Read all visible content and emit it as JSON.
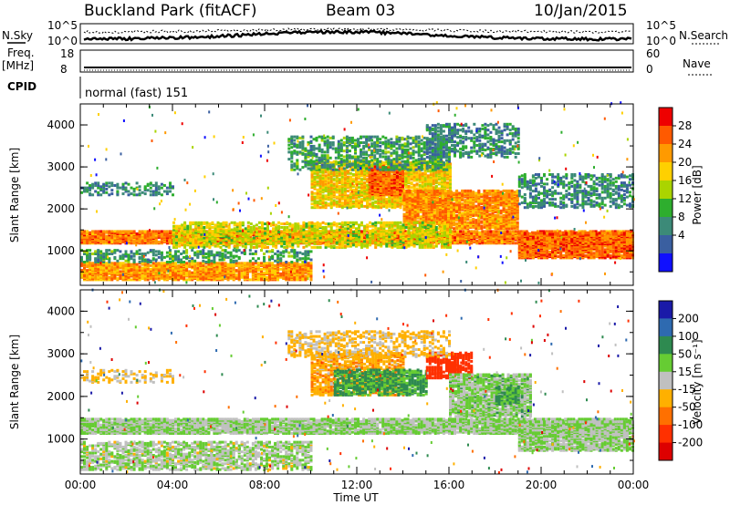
{
  "header": {
    "title": "Buckland Park (fitACF)",
    "beam": "Beam 03",
    "date": "10/Jan/2015"
  },
  "status_panels": {
    "nsky_label": "N.Sky",
    "nsky_ticks": [
      "10^5",
      "10^0"
    ],
    "nsearch_label": "N.Search",
    "nsearch_ticks": [
      "10^5",
      "10^0"
    ],
    "freq_label": "Freq.",
    "freq_unit": "[MHz]",
    "freq_ticks": [
      "18",
      "8"
    ],
    "nave_label": "Nave",
    "nave_ticks": [
      "60",
      "0"
    ],
    "cpid_label": "CPID",
    "cpid_text": "normal (fast) 151"
  },
  "chart_data": [
    {
      "type": "heatmap",
      "name": "power",
      "xlabel": "",
      "ylabel": "Slant Range [km]",
      "x_ticks": [
        "00:00",
        "04:00",
        "08:00",
        "12:00",
        "16:00",
        "20:00",
        "00:00"
      ],
      "xlim_hours": [
        0,
        24
      ],
      "y_ticks": [
        "1000",
        "2000",
        "3000",
        "4000"
      ],
      "ylim": [
        180,
        4500
      ],
      "colorbar_label": "Power [dB]",
      "colorbar_ticks": [
        "28",
        "24",
        "20",
        "16",
        "12",
        "8",
        "4"
      ],
      "colorbar_colors": [
        "#ee0000",
        "#ff5a00",
        "#ff9a00",
        "#ffd000",
        "#aad400",
        "#2eae2e",
        "#3c8a78",
        "#3a5fa0",
        "#1010ff"
      ],
      "bands": [
        {
          "t0": 0,
          "t1": 24,
          "r0": 1150,
          "r1": 1450,
          "power": 26,
          "density": 0.9
        },
        {
          "t0": 0,
          "t1": 10,
          "r0": 280,
          "r1": 700,
          "power": 24,
          "density": 0.8
        },
        {
          "t0": 0,
          "t1": 10,
          "r0": 700,
          "r1": 1000,
          "power": 10,
          "density": 0.35
        },
        {
          "t0": 0,
          "t1": 4,
          "r0": 2300,
          "r1": 2600,
          "power": 8,
          "density": 0.35
        },
        {
          "t0": 10,
          "t1": 16,
          "r0": 2000,
          "r1": 3100,
          "power": 20,
          "density": 0.7
        },
        {
          "t0": 12.5,
          "t1": 14,
          "r0": 2300,
          "r1": 3000,
          "power": 27,
          "density": 0.8
        },
        {
          "t0": 14,
          "t1": 19,
          "r0": 1500,
          "r1": 2400,
          "power": 25,
          "density": 0.8
        },
        {
          "t0": 9,
          "t1": 16,
          "r0": 2900,
          "r1": 3700,
          "power": 10,
          "density": 0.4
        },
        {
          "t0": 15,
          "t1": 19,
          "r0": 3200,
          "r1": 4000,
          "power": 8,
          "density": 0.4
        },
        {
          "t0": 19,
          "t1": 24,
          "r0": 800,
          "r1": 1400,
          "power": 27,
          "density": 0.85
        },
        {
          "t0": 19,
          "t1": 24,
          "r0": 2000,
          "r1": 2800,
          "power": 8,
          "density": 0.35
        },
        {
          "t0": 4,
          "t1": 16,
          "r0": 1050,
          "r1": 1650,
          "power": 18,
          "density": 0.55
        }
      ]
    },
    {
      "type": "heatmap",
      "name": "velocity",
      "xlabel": "Time UT",
      "ylabel": "Slant Range [km]",
      "x_ticks": [
        "00:00",
        "04:00",
        "08:00",
        "12:00",
        "16:00",
        "20:00",
        "00:00"
      ],
      "xlim_hours": [
        0,
        24
      ],
      "y_ticks": [
        "1000",
        "2000",
        "3000",
        "4000"
      ],
      "ylim": [
        180,
        4500
      ],
      "colorbar_label": "Velocity [m s⁻¹]",
      "colorbar_ticks": [
        "200",
        "100",
        "50",
        "15",
        "-15",
        "-50",
        "-100",
        "-200"
      ],
      "colorbar_colors": [
        "#1a1aa8",
        "#2e6ab0",
        "#2e8a50",
        "#66cc33",
        "#c0c0c0",
        "#ffb000",
        "#ff7000",
        "#ff3000",
        "#dd0000"
      ],
      "bands": [
        {
          "t0": 0,
          "t1": 24,
          "r0": 1100,
          "r1": 1450,
          "velocity": 0,
          "density": 0.85
        },
        {
          "t0": 0,
          "t1": 10,
          "r0": 250,
          "r1": 900,
          "velocity": -5,
          "density": 0.55
        },
        {
          "t0": 10,
          "t1": 14,
          "r0": 2000,
          "r1": 3000,
          "velocity": -60,
          "density": 0.6
        },
        {
          "t0": 11,
          "t1": 15,
          "r0": 2000,
          "r1": 2600,
          "velocity": 40,
          "density": 0.6
        },
        {
          "t0": 15,
          "t1": 17,
          "r0": 2400,
          "r1": 3000,
          "velocity": -180,
          "density": 0.6
        },
        {
          "t0": 16,
          "t1": 19.5,
          "r0": 1500,
          "r1": 2500,
          "velocity": 5,
          "density": 0.8
        },
        {
          "t0": 18,
          "t1": 19,
          "r0": 1800,
          "r1": 2200,
          "velocity": 40,
          "density": 0.6
        },
        {
          "t0": 19,
          "t1": 24,
          "r0": 700,
          "r1": 1400,
          "velocity": 0,
          "density": 0.8
        },
        {
          "t0": 9,
          "t1": 16,
          "r0": 2900,
          "r1": 3500,
          "velocity": -40,
          "density": 0.35
        },
        {
          "t0": 0,
          "t1": 4,
          "r0": 2300,
          "r1": 2600,
          "velocity": -40,
          "density": 0.3
        }
      ]
    }
  ]
}
